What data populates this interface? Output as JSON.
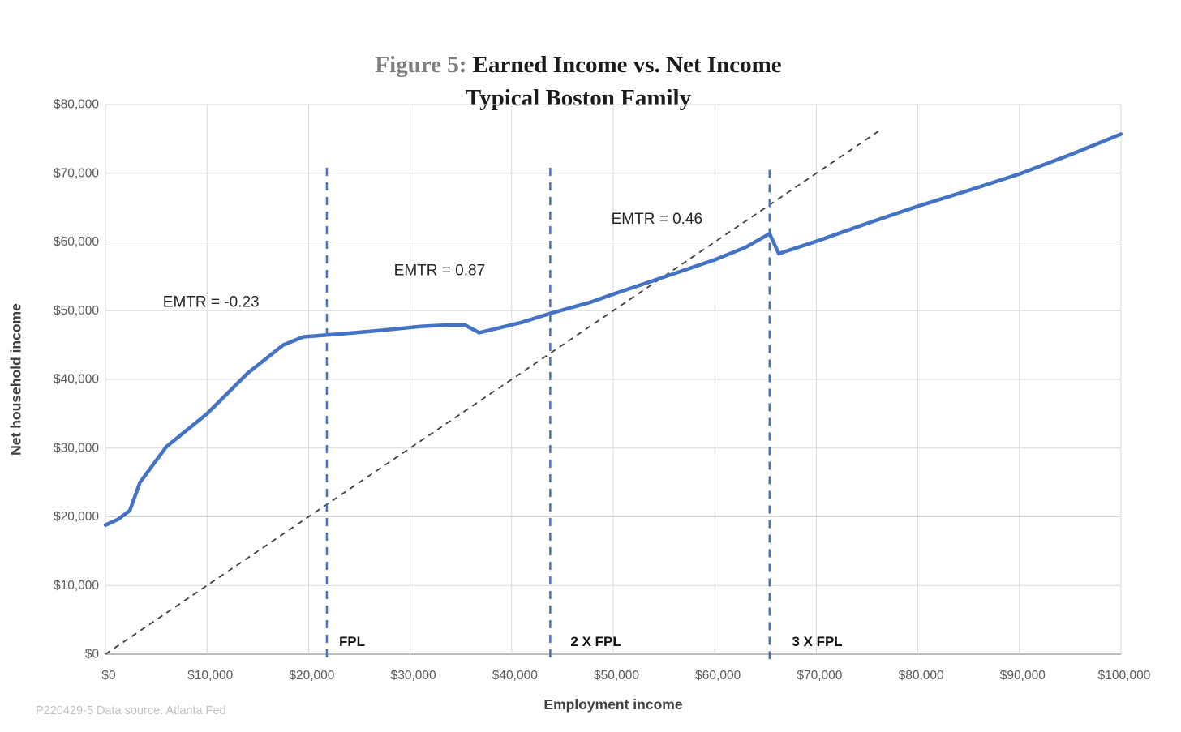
{
  "title": {
    "figure_label": "Figure 5:",
    "line1": "Earned Income vs. Net Income",
    "line2": "Typical Boston Family"
  },
  "footer": {
    "text": "P220429-5 Data source: Atlanta Fed"
  },
  "chart_data": {
    "type": "line",
    "title": "Figure 5: Earned Income vs. Net Income — Typical Boston Family",
    "xlabel": "Employment income",
    "ylabel": "Net household income",
    "xlim": [
      0,
      100000
    ],
    "ylim": [
      0,
      80000
    ],
    "grid": true,
    "legend": "none",
    "x_ticks": [
      {
        "value": 0,
        "label": "$0"
      },
      {
        "value": 10000,
        "label": "$10,000"
      },
      {
        "value": 20000,
        "label": "$20,000"
      },
      {
        "value": 30000,
        "label": "$30,000"
      },
      {
        "value": 40000,
        "label": "$40,000"
      },
      {
        "value": 50000,
        "label": "$50,000"
      },
      {
        "value": 60000,
        "label": "$60,000"
      },
      {
        "value": 70000,
        "label": "$70,000"
      },
      {
        "value": 80000,
        "label": "$80,000"
      },
      {
        "value": 90000,
        "label": "$90,000"
      },
      {
        "value": 100000,
        "label": "$100,000"
      }
    ],
    "y_ticks": [
      {
        "value": 0,
        "label": "$0"
      },
      {
        "value": 10000,
        "label": "$10,000"
      },
      {
        "value": 20000,
        "label": "$20,000"
      },
      {
        "value": 30000,
        "label": "$30,000"
      },
      {
        "value": 40000,
        "label": "$40,000"
      },
      {
        "value": 50000,
        "label": "$50,000"
      },
      {
        "value": 60000,
        "label": "$60,000"
      },
      {
        "value": 70000,
        "label": "$70,000"
      },
      {
        "value": 80000,
        "label": "$80,000"
      }
    ],
    "colors": {
      "line": "#4472C4",
      "reference_line": "#3F3F3F",
      "gridline": "#D9D9D9",
      "axis_line": "#A6A6A6",
      "tick_text": "#595959",
      "annotation_text": "#262626",
      "vline": "#4472C4"
    },
    "series": [
      {
        "name": "Net household income vs. employment income",
        "color": "#4472C4",
        "style": "solid",
        "width": 4.5,
        "points": [
          [
            0,
            18800
          ],
          [
            1200,
            19600
          ],
          [
            2400,
            20900
          ],
          [
            3400,
            25000
          ],
          [
            6000,
            30200
          ],
          [
            10000,
            35000
          ],
          [
            14000,
            40900
          ],
          [
            17500,
            45000
          ],
          [
            19500,
            46200
          ],
          [
            23000,
            46600
          ],
          [
            27000,
            47100
          ],
          [
            31000,
            47700
          ],
          [
            33500,
            47900
          ],
          [
            35400,
            47900
          ],
          [
            36800,
            46800
          ],
          [
            38500,
            47400
          ],
          [
            41000,
            48300
          ],
          [
            43800,
            49600
          ],
          [
            47700,
            51200
          ],
          [
            50000,
            52400
          ],
          [
            54200,
            54500
          ],
          [
            57000,
            55900
          ],
          [
            60000,
            57400
          ],
          [
            63000,
            59200
          ],
          [
            65400,
            61200
          ],
          [
            66300,
            58300
          ],
          [
            70000,
            60100
          ],
          [
            75000,
            62700
          ],
          [
            80000,
            65200
          ],
          [
            85000,
            67500
          ],
          [
            90000,
            69900
          ],
          [
            95000,
            72700
          ],
          [
            100000,
            75700
          ]
        ]
      },
      {
        "name": "45-degree reference (net income = earned income)",
        "color": "#3F3F3F",
        "style": "dashed",
        "width": 1.8,
        "points": [
          [
            0,
            0
          ],
          [
            76300,
            76300
          ]
        ]
      }
    ],
    "vlines": [
      {
        "x": 21800,
        "y_top": 70800,
        "label": "FPL",
        "label_x": 23000,
        "color": "#4472C4"
      },
      {
        "x": 43800,
        "y_top": 70800,
        "label": "2 X FPL",
        "label_x": 45800,
        "color": "#4472C4"
      },
      {
        "x": 65400,
        "y_top": 70500,
        "label": "3 X FPL",
        "label_x": 67600,
        "color": "#4472C4"
      }
    ],
    "annotations": [
      {
        "text": "EMTR = -0.23",
        "x": 10400,
        "y": 51200
      },
      {
        "text": "EMTR = 0.87",
        "x": 32900,
        "y": 55800
      },
      {
        "text": "EMTR = 0.46",
        "x": 54300,
        "y": 63300
      }
    ]
  }
}
